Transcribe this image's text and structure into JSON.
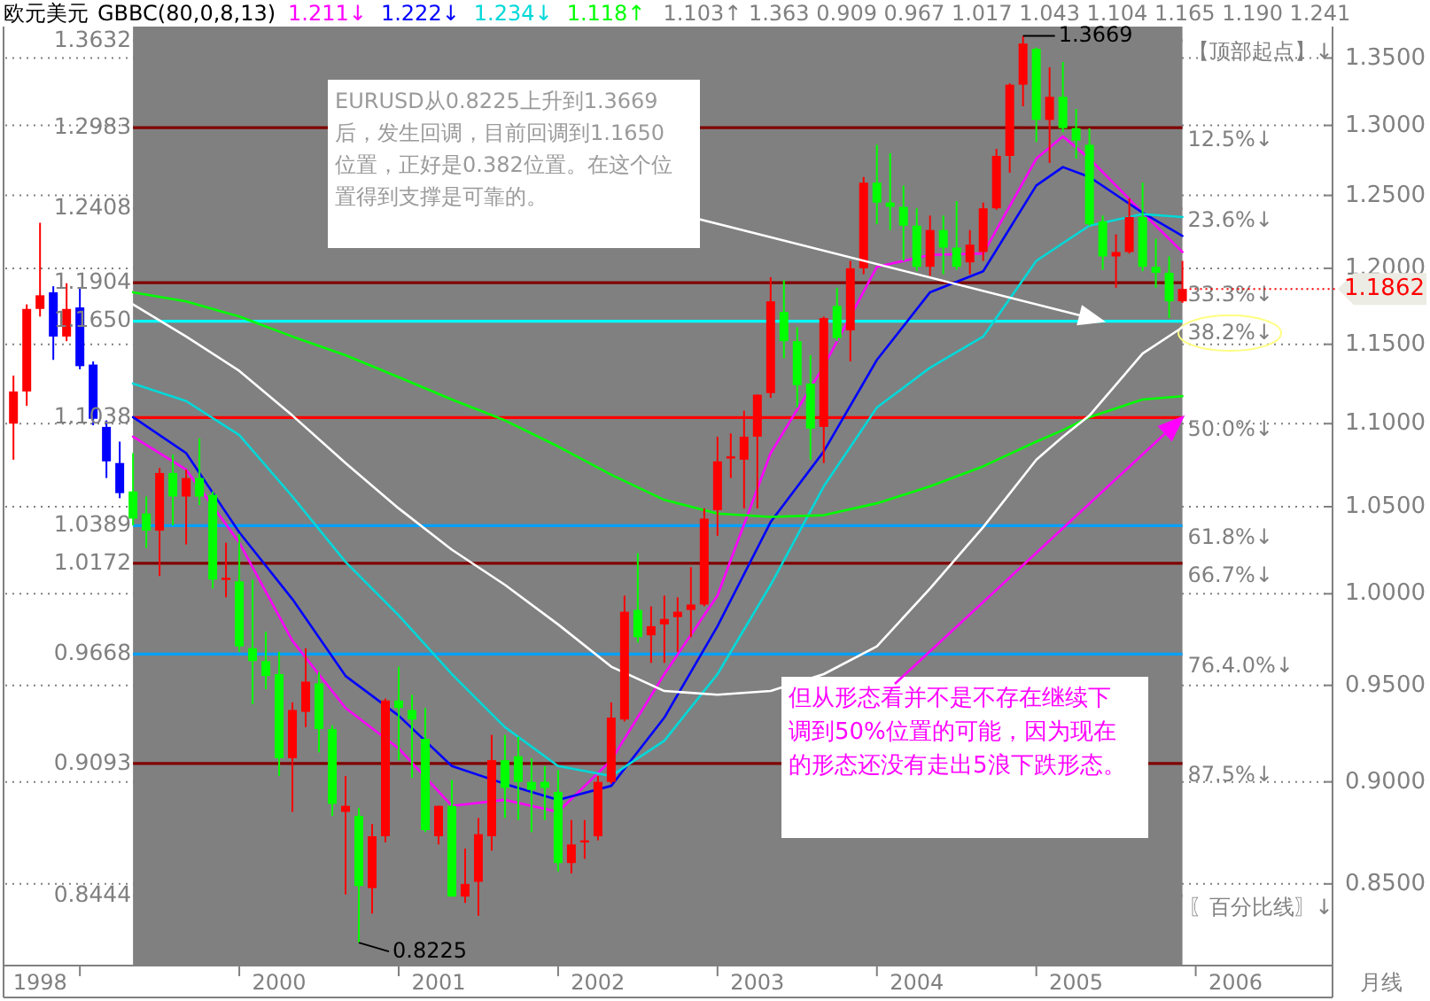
{
  "chart_data": {
    "type": "candlestick",
    "title": "欧元美元",
    "subtitle": "GBBC(80,0,8,13)",
    "legend": "top",
    "log": "y",
    "grid": "y",
    "xlim": [
      "1998-07-13",
      "2006-11-10"
    ],
    "ylim": [
      0.812,
      1.374
    ],
    "yticks": [
      {
        "value": 0.85,
        "label": "0.8500"
      },
      {
        "value": 0.9,
        "label": "0.9000"
      },
      {
        "value": 0.95,
        "label": "0.9500"
      },
      {
        "value": 1.0,
        "label": "1.0000"
      },
      {
        "value": 1.05,
        "label": "1.0500"
      },
      {
        "value": 1.1,
        "label": "1.1000"
      },
      {
        "value": 1.15,
        "label": "1.1500"
      },
      {
        "value": 1.2,
        "label": "1.2000"
      },
      {
        "value": 1.25,
        "label": "1.2500"
      },
      {
        "value": 1.3,
        "label": "1.3000"
      },
      {
        "value": 1.35,
        "label": "1.3500"
      }
    ],
    "xticks": [
      {
        "value": "1998-10",
        "label": "1998"
      },
      {
        "value": "1999-01",
        "label": null
      },
      {
        "value": "2000-01",
        "label": null
      },
      {
        "value": "2000-04",
        "label": "2000"
      },
      {
        "value": "2001-01",
        "label": null
      },
      {
        "value": "2001-04",
        "label": "2001"
      },
      {
        "value": "2002-01",
        "label": null
      },
      {
        "value": "2002-04",
        "label": "2002"
      },
      {
        "value": "2003-01",
        "label": null
      },
      {
        "value": "2003-04",
        "label": "2003"
      },
      {
        "value": "2004-01",
        "label": null
      },
      {
        "value": "2004-04",
        "label": "2004"
      },
      {
        "value": "2005-01",
        "label": null
      },
      {
        "value": "2005-04",
        "label": "2005"
      },
      {
        "value": "2006-01",
        "label": null
      },
      {
        "value": "2006-04",
        "label": "2006"
      }
    ],
    "x": [
      "1998-08",
      "1998-09",
      "1998-10",
      "1998-11",
      "1998-12",
      "1999-01",
      "1999-02",
      "1999-03",
      "1999-04",
      "1999-05",
      "1999-06",
      "1999-07",
      "1999-08",
      "1999-09",
      "1999-10",
      "1999-11",
      "1999-12",
      "2000-01",
      "2000-02",
      "2000-03",
      "2000-04",
      "2000-05",
      "2000-06",
      "2000-07",
      "2000-08",
      "2000-09",
      "2000-10",
      "2000-11",
      "2000-12",
      "2001-01",
      "2001-02",
      "2001-03",
      "2001-04",
      "2001-05",
      "2001-06",
      "2001-07",
      "2001-08",
      "2001-09",
      "2001-10",
      "2001-11",
      "2001-12",
      "2002-01",
      "2002-02",
      "2002-03",
      "2002-04",
      "2002-05",
      "2002-06",
      "2002-07",
      "2002-08",
      "2002-09",
      "2002-10",
      "2002-11",
      "2002-12",
      "2003-01",
      "2003-02",
      "2003-03",
      "2003-04",
      "2003-05",
      "2003-06",
      "2003-07",
      "2003-08",
      "2003-09",
      "2003-10",
      "2003-11",
      "2003-12",
      "2004-01",
      "2004-02",
      "2004-03",
      "2004-04",
      "2004-05",
      "2004-06",
      "2004-07",
      "2004-08",
      "2004-09",
      "2004-10",
      "2004-11",
      "2004-12",
      "2005-01",
      "2005-02",
      "2005-03",
      "2005-04",
      "2005-05",
      "2005-06",
      "2005-07",
      "2005-08",
      "2005-09",
      "2005-10",
      "2005-11",
      "2005-12"
    ],
    "ohlc": [
      [
        1.1,
        1.13,
        1.078,
        1.12
      ],
      [
        1.12,
        1.176,
        1.111,
        1.173
      ],
      [
        1.173,
        1.231,
        1.168,
        1.182
      ],
      [
        1.184,
        1.188,
        1.14,
        1.155
      ],
      [
        1.155,
        1.19,
        1.152,
        1.173
      ],
      [
        1.174,
        1.187,
        1.134,
        1.136
      ],
      [
        1.137,
        1.139,
        1.099,
        1.103
      ],
      [
        1.098,
        1.102,
        1.067,
        1.077
      ],
      [
        1.076,
        1.089,
        1.055,
        1.058
      ],
      [
        1.059,
        1.082,
        1.039,
        1.043
      ],
      [
        1.046,
        1.056,
        1.026,
        1.036
      ],
      [
        1.036,
        1.073,
        1.01,
        1.07
      ],
      [
        1.07,
        1.081,
        1.039,
        1.056
      ],
      [
        1.056,
        1.072,
        1.028,
        1.067
      ],
      [
        1.067,
        1.091,
        1.051,
        1.056
      ],
      [
        1.057,
        1.059,
        1.003,
        1.008
      ],
      [
        1.008,
        1.029,
        0.998,
        1.009
      ],
      [
        1.007,
        1.034,
        0.968,
        0.971
      ],
      [
        0.97,
        1.008,
        0.94,
        0.963
      ],
      [
        0.963,
        0.979,
        0.948,
        0.955
      ],
      [
        0.956,
        0.968,
        0.903,
        0.912
      ],
      [
        0.912,
        0.941,
        0.885,
        0.937
      ],
      [
        0.936,
        0.97,
        0.928,
        0.952
      ],
      [
        0.951,
        0.957,
        0.915,
        0.927
      ],
      [
        0.927,
        0.929,
        0.883,
        0.889
      ],
      [
        0.885,
        0.903,
        0.845,
        0.888
      ],
      [
        0.883,
        0.887,
        0.8225,
        0.849
      ],
      [
        0.848,
        0.879,
        0.836,
        0.873
      ],
      [
        0.873,
        0.943,
        0.87,
        0.942
      ],
      [
        0.942,
        0.96,
        0.911,
        0.938
      ],
      [
        0.937,
        0.945,
        0.902,
        0.932
      ],
      [
        0.922,
        0.938,
        0.875,
        0.876
      ],
      [
        0.873,
        0.888,
        0.869,
        0.888
      ],
      [
        0.888,
        0.901,
        0.844,
        0.844
      ],
      [
        0.844,
        0.867,
        0.841,
        0.85
      ],
      [
        0.851,
        0.882,
        0.835,
        0.874
      ],
      [
        0.873,
        0.924,
        0.866,
        0.911
      ],
      [
        0.911,
        0.924,
        0.882,
        0.897
      ],
      [
        0.913,
        0.923,
        0.881,
        0.9
      ],
      [
        0.9,
        0.912,
        0.875,
        0.896
      ],
      [
        0.9,
        0.908,
        0.881,
        0.897
      ],
      [
        0.895,
        0.906,
        0.856,
        0.86
      ],
      [
        0.86,
        0.881,
        0.855,
        0.869
      ],
      [
        0.87,
        0.881,
        0.862,
        0.871
      ],
      [
        0.873,
        0.903,
        0.871,
        0.9
      ],
      [
        0.9,
        0.941,
        0.899,
        0.933
      ],
      [
        0.932,
        0.999,
        0.931,
        0.99
      ],
      [
        0.991,
        1.023,
        0.973,
        0.976
      ],
      [
        0.977,
        0.993,
        0.962,
        0.982
      ],
      [
        0.983,
        0.999,
        0.962,
        0.986
      ],
      [
        0.987,
        0.998,
        0.968,
        0.99
      ],
      [
        0.991,
        1.015,
        0.976,
        0.994
      ],
      [
        0.994,
        1.049,
        0.993,
        1.043
      ],
      [
        1.048,
        1.092,
        1.033,
        1.077
      ],
      [
        1.079,
        1.094,
        1.067,
        1.08
      ],
      [
        1.078,
        1.108,
        1.049,
        1.092
      ],
      [
        1.092,
        1.118,
        1.049,
        1.118
      ],
      [
        1.119,
        1.194,
        1.116,
        1.178
      ],
      [
        1.171,
        1.192,
        1.141,
        1.152
      ],
      [
        1.152,
        1.161,
        1.11,
        1.124
      ],
      [
        1.125,
        1.143,
        1.078,
        1.097
      ],
      [
        1.098,
        1.168,
        1.076,
        1.167
      ],
      [
        1.175,
        1.187,
        1.152,
        1.154
      ],
      [
        1.159,
        1.205,
        1.139,
        1.2
      ],
      [
        1.2,
        1.263,
        1.196,
        1.259
      ],
      [
        1.259,
        1.286,
        1.23,
        1.245
      ],
      [
        1.245,
        1.28,
        1.226,
        1.242
      ],
      [
        1.242,
        1.257,
        1.205,
        1.229
      ],
      [
        1.229,
        1.241,
        1.198,
        1.201
      ],
      [
        1.201,
        1.236,
        1.195,
        1.226
      ],
      [
        1.226,
        1.236,
        1.196,
        1.214
      ],
      [
        1.214,
        1.246,
        1.199,
        1.201
      ],
      [
        1.204,
        1.226,
        1.196,
        1.216
      ],
      [
        1.211,
        1.245,
        1.205,
        1.241
      ],
      [
        1.241,
        1.283,
        1.24,
        1.278
      ],
      [
        1.278,
        1.331,
        1.266,
        1.33
      ],
      [
        1.33,
        1.3669,
        1.314,
        1.361
      ],
      [
        1.357,
        1.358,
        1.288,
        1.304
      ],
      [
        1.304,
        1.343,
        1.273,
        1.321
      ],
      [
        1.321,
        1.347,
        1.295,
        1.298
      ],
      [
        1.298,
        1.312,
        1.276,
        1.289
      ],
      [
        1.286,
        1.298,
        1.229,
        1.23
      ],
      [
        1.232,
        1.236,
        1.199,
        1.208
      ],
      [
        1.208,
        1.223,
        1.187,
        1.211
      ],
      [
        1.211,
        1.248,
        1.21,
        1.235
      ],
      [
        1.235,
        1.259,
        1.198,
        1.201
      ],
      [
        1.201,
        1.22,
        1.187,
        1.197
      ],
      [
        1.197,
        1.208,
        1.167,
        1.178
      ],
      [
        1.178,
        1.205,
        1.177,
        1.1862
      ]
    ],
    "colors": [
      "#ff0000",
      "#ff0000",
      "#ff0000",
      "#0000ff",
      "#ff0000",
      "#0000ff",
      "#0000ff",
      "#0000ff",
      "#0000ff",
      "#00ff00",
      "#00ff00",
      "#ff0000",
      "#00ff00",
      "#ff0000",
      "#00ff00",
      "#00ff00",
      "#ff0000",
      "#00ff00",
      "#00ff00",
      "#00ff00",
      "#00ff00",
      "#ff0000",
      "#ff0000",
      "#00ff00",
      "#00ff00",
      "#ff0000",
      "#00ff00",
      "#ff0000",
      "#ff0000",
      "#00ff00",
      "#00ff00",
      "#00ff00",
      "#ff0000",
      "#00ff00",
      "#ff0000",
      "#ff0000",
      "#ff0000",
      "#00ff00",
      "#00ff00",
      "#00ff00",
      "#00ff00",
      "#00ff00",
      "#ff0000",
      "#ff0000",
      "#ff0000",
      "#ff0000",
      "#ff0000",
      "#00ff00",
      "#ff0000",
      "#ff0000",
      "#ff0000",
      "#ff0000",
      "#ff0000",
      "#ff0000",
      "#ff0000",
      "#ff0000",
      "#ff0000",
      "#ff0000",
      "#00ff00",
      "#00ff00",
      "#00ff00",
      "#ff0000",
      "#00ff00",
      "#ff0000",
      "#ff0000",
      "#00ff00",
      "#00ff00",
      "#00ff00",
      "#00ff00",
      "#ff0000",
      "#00ff00",
      "#00ff00",
      "#ff0000",
      "#ff0000",
      "#ff0000",
      "#ff0000",
      "#ff0000",
      "#00ff00",
      "#ff0000",
      "#00ff00",
      "#00ff00",
      "#00ff00",
      "#00ff00",
      "#ff0000",
      "#ff0000",
      "#00ff00",
      "#00ff00",
      "#00ff00",
      "#ff0000"
    ],
    "series": [
      {
        "type": "line",
        "name": "1.211↓",
        "color": "#ff00ff",
        "x": [
          "1999-05",
          "1999-09",
          "2000-01",
          "2000-05",
          "2000-09",
          "2001-01",
          "2001-05",
          "2001-09",
          "2002-01",
          "2002-05",
          "2002-09",
          "2003-01",
          "2003-05",
          "2003-09",
          "2004-01",
          "2004-05",
          "2004-09",
          "2005-01",
          "2005-03",
          "2005-05",
          "2005-09",
          "2005-12"
        ],
        "values": [
          1.092,
          1.072,
          1.029,
          0.974,
          0.938,
          0.917,
          0.888,
          0.891,
          0.885,
          0.911,
          0.956,
          0.999,
          1.082,
          1.136,
          1.201,
          1.209,
          1.21,
          1.276,
          1.292,
          1.276,
          1.238,
          1.211
        ]
      },
      {
        "type": "line",
        "name": "1.222↓",
        "color": "#0000ff",
        "x": [
          "1999-05",
          "1999-09",
          "2000-01",
          "2000-05",
          "2000-09",
          "2001-01",
          "2001-05",
          "2001-09",
          "2002-01",
          "2002-05",
          "2002-09",
          "2003-01",
          "2003-05",
          "2003-09",
          "2004-01",
          "2004-05",
          "2004-09",
          "2005-01",
          "2005-03",
          "2005-05",
          "2005-09",
          "2005-12"
        ],
        "values": [
          1.104,
          1.082,
          1.035,
          0.997,
          0.955,
          0.934,
          0.908,
          0.899,
          0.891,
          0.898,
          0.933,
          0.982,
          1.041,
          1.083,
          1.14,
          1.184,
          1.198,
          1.257,
          1.27,
          1.263,
          1.238,
          1.222
        ]
      },
      {
        "type": "line",
        "name": "1.234↓",
        "color": "#00d8d8",
        "x": [
          "1999-05",
          "1999-09",
          "2000-01",
          "2000-05",
          "2000-09",
          "2001-01",
          "2001-05",
          "2001-09",
          "2002-01",
          "2002-05",
          "2002-09",
          "2003-01",
          "2003-05",
          "2003-09",
          "2004-01",
          "2004-05",
          "2004-09",
          "2005-01",
          "2005-03",
          "2005-05",
          "2005-09",
          "2005-12"
        ],
        "values": [
          1.125,
          1.114,
          1.093,
          1.056,
          1.018,
          0.988,
          0.956,
          0.928,
          0.908,
          0.903,
          0.921,
          0.956,
          1.005,
          1.062,
          1.11,
          1.135,
          1.155,
          1.205,
          1.217,
          1.229,
          1.237,
          1.235
        ]
      },
      {
        "type": "line",
        "name": "1.118↑",
        "color": "#00ff00",
        "x": [
          "1999-05",
          "1999-09",
          "2000-01",
          "2000-05",
          "2000-09",
          "2001-01",
          "2001-05",
          "2001-09",
          "2002-01",
          "2002-05",
          "2002-09",
          "2003-01",
          "2003-05",
          "2003-09",
          "2004-01",
          "2004-05",
          "2004-09",
          "2005-01",
          "2005-03",
          "2005-05",
          "2005-09",
          "2005-12"
        ],
        "values": [
          1.184,
          1.178,
          1.168,
          1.155,
          1.143,
          1.129,
          1.115,
          1.102,
          1.086,
          1.069,
          1.054,
          1.046,
          1.044,
          1.045,
          1.052,
          1.062,
          1.074,
          1.089,
          1.096,
          1.104,
          1.115,
          1.117
        ]
      },
      {
        "type": "line",
        "color": "#ffffff",
        "x": [
          "1999-05",
          "1999-09",
          "2000-01",
          "2000-05",
          "2000-09",
          "2001-01",
          "2001-05",
          "2001-09",
          "2002-01",
          "2002-05",
          "2002-09",
          "2003-01",
          "2003-05",
          "2003-09",
          "2004-01",
          "2004-05",
          "2004-09",
          "2005-01",
          "2005-03",
          "2005-05",
          "2005-09",
          "2005-12"
        ],
        "values": [
          1.176,
          1.155,
          1.133,
          1.105,
          1.076,
          1.049,
          1.025,
          1.005,
          0.983,
          0.96,
          0.947,
          0.945,
          0.947,
          0.956,
          0.971,
          1.003,
          1.038,
          1.078,
          1.092,
          1.105,
          1.144,
          1.161
        ]
      }
    ],
    "bands": [
      {
        "axis": "x",
        "from": "1999-05",
        "to": "2005-12",
        "color": "#808080"
      }
    ],
    "ref_lines": [
      {
        "axis": "y",
        "value": 1.3632,
        "label": "【顶部起点】↓",
        "color": "#808080"
      },
      {
        "axis": "y",
        "value": 1.2983,
        "label": "12.5%↓",
        "color": "#800000"
      },
      {
        "axis": "y",
        "value": 1.2408,
        "label": "23.6%↓",
        "color": "#808080"
      },
      {
        "axis": "y",
        "value": 1.1904,
        "label": "33.3%↓",
        "color": "#800000"
      },
      {
        "axis": "y",
        "value": 1.165,
        "label": "38.2%↓",
        "color": "#00ffff"
      },
      {
        "axis": "y",
        "value": 1.1038,
        "label": "50.0%↓",
        "color": "#ff0000"
      },
      {
        "axis": "y",
        "value": 1.0389,
        "label": "61.8%↓",
        "color": "#00a0ff"
      },
      {
        "axis": "y",
        "value": 1.0172,
        "label": "66.7%↓",
        "color": "#800000"
      },
      {
        "axis": "y",
        "value": 0.9668,
        "label": "76.4.0%↓",
        "color": "#00a0ff"
      },
      {
        "axis": "y",
        "value": 0.9093,
        "label": "87.5%↓",
        "color": "#800000"
      },
      {
        "axis": "y",
        "value": 0.8444,
        "label": "〖百分比线〗↓",
        "color": "#808080"
      }
    ],
    "annotations": [
      "1.103↑ 1.363 0.909 0.967 1.017 1.043 1.104 1.165 1.190 1.241",
      {
        "text": "EURUSD从0.8225上升到1.3669后，发生回调，目前回调到1.1650位置，正好是0.382位置。在这个位置得到支撑是可靠的。",
        "x": "2005-06",
        "y": 1.165
      },
      {
        "text": "但从形态看并不是不存在继续下调到50%位置的可能，因为现在的形态还没有走出5浪下跌形态。",
        "x": "2005-12",
        "y": 1.1038
      },
      {
        "text": "1.3669",
        "x": "2004-12",
        "y": 1.3669
      },
      {
        "text": "0.8225",
        "x": "2000-10",
        "y": 0.8225
      },
      {
        "text": "1.1862",
        "x": "2005-12",
        "y": 1.1862
      },
      "月线",
      {
        "text": "1.3632",
        "x": "1999-05",
        "y": 1.3632
      },
      {
        "text": "1.2983",
        "x": "1999-05",
        "y": 1.2983
      },
      {
        "text": "1.2408",
        "x": "1999-05",
        "y": 1.2408
      },
      {
        "text": "1.1904",
        "x": "1999-05",
        "y": 1.1904
      },
      {
        "text": "1.1650",
        "x": "1999-05",
        "y": 1.165
      },
      {
        "text": "1.1038",
        "x": "1999-05",
        "y": 1.1038
      },
      {
        "text": "1.0389",
        "x": "1999-05",
        "y": 1.0389
      },
      {
        "text": "1.0172",
        "x": "1999-05",
        "y": 1.0172
      },
      {
        "text": "0.9668",
        "x": "1999-05",
        "y": 0.9668
      },
      {
        "text": "0.9093",
        "x": "1999-05",
        "y": 0.9093
      },
      {
        "text": "0.8444",
        "x": "1999-05",
        "y": 0.8444
      }
    ]
  }
}
